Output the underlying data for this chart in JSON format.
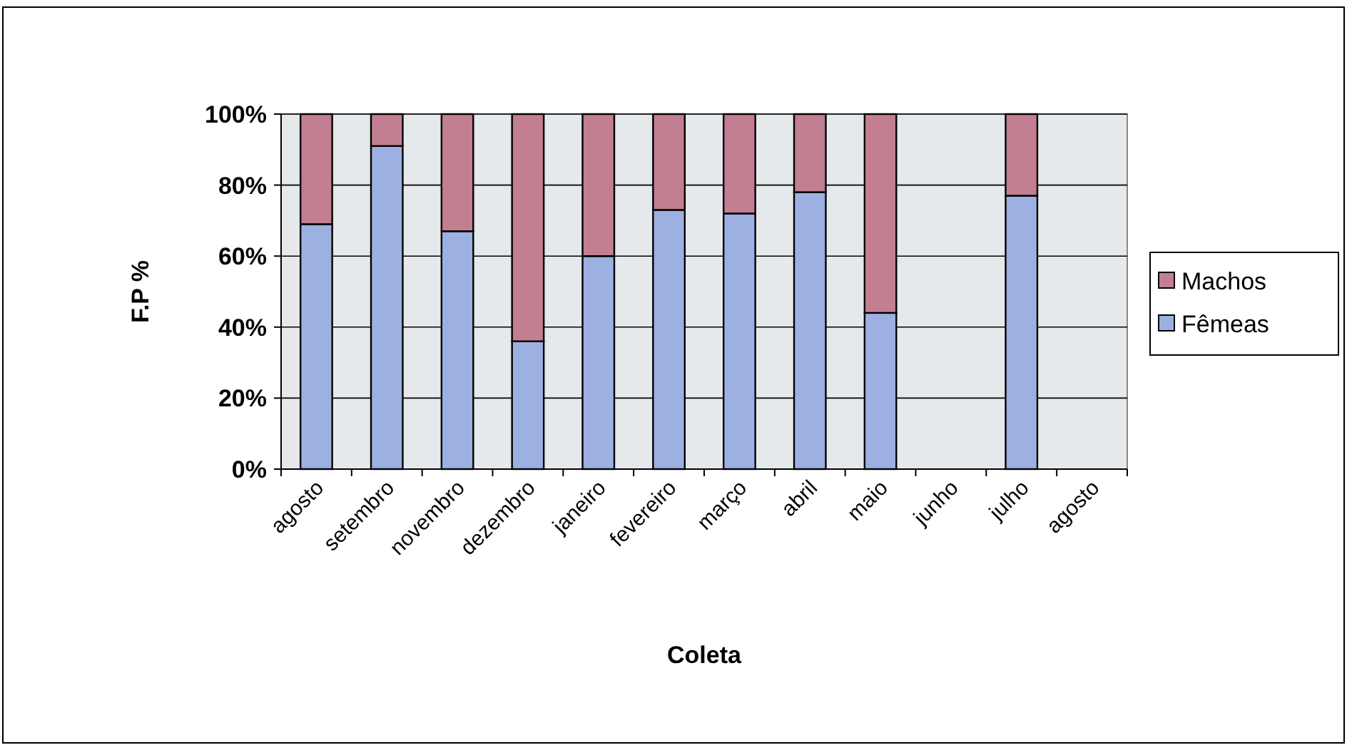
{
  "chart_data": {
    "type": "bar",
    "stacked": true,
    "xlabel": "Coleta",
    "ylabel": "F.P %",
    "categories": [
      "agosto",
      "setembro",
      "novembro",
      "dezembro",
      "janeiro",
      "fevereiro",
      "março",
      "abril",
      "maio",
      "junho",
      "julho",
      "agosto"
    ],
    "series": [
      {
        "name": "Fêmeas",
        "color": "#9db0e2",
        "values": [
          69,
          91,
          67,
          36,
          60,
          73,
          72,
          78,
          44,
          null,
          77,
          null
        ]
      },
      {
        "name": "Machos",
        "color": "#c27f91",
        "values": [
          31,
          9,
          33,
          64,
          40,
          27,
          28,
          22,
          56,
          null,
          23,
          null
        ]
      }
    ],
    "ylim": [
      0,
      100
    ],
    "yticks": [
      {
        "value": 0,
        "label": "0%"
      },
      {
        "value": 20,
        "label": "20%"
      },
      {
        "value": 40,
        "label": "40%"
      },
      {
        "value": 60,
        "label": "60%"
      },
      {
        "value": 80,
        "label": "80%"
      },
      {
        "value": 100,
        "label": "100%"
      }
    ],
    "grid": "y",
    "legend": "right"
  }
}
